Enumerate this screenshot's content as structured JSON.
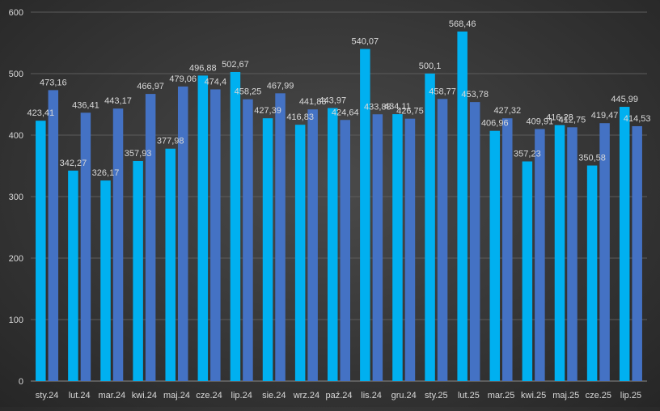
{
  "chart_data": {
    "type": "bar",
    "title": "",
    "xlabel": "",
    "ylabel": "",
    "ylim": [
      0,
      600
    ],
    "yticks": [
      "0",
      "100",
      "200",
      "300",
      "400",
      "500",
      "600"
    ],
    "grid": "horizontal",
    "legend": "none",
    "categories": [
      "sty.24",
      "lut.24",
      "mar.24",
      "kwi.24",
      "maj.24",
      "cze.24",
      "lip.24",
      "sie.24",
      "wrz.24",
      "paź.24",
      "lis.24",
      "gru.24",
      "sty.25",
      "lut.25",
      "mar.25",
      "kwi.25",
      "maj.25",
      "cze.25",
      "lip.25"
    ],
    "series": [
      {
        "color": "#00b0f0",
        "values": [
          423.41,
          342.27,
          326.17,
          357.93,
          377.98,
          496.88,
          502.67,
          427.39,
          416.83,
          443.97,
          540.07,
          434.11,
          500.1,
          568.46,
          406.96,
          357.23,
          416.28,
          350.58,
          445.99
        ],
        "labels": [
          "423,41",
          "342,27",
          "326,17",
          "357,93",
          "377,98",
          "496,88",
          "502,67",
          "427,39",
          "416,83",
          "443,97",
          "540,07",
          "434,11",
          "500,1",
          "568,46",
          "406,96",
          "357,23",
          "416,28",
          "350,58",
          "445,99"
        ]
      },
      {
        "color": "#4472c4",
        "values": [
          473.16,
          436.41,
          443.17,
          466.97,
          479.06,
          474.4,
          458.25,
          467.99,
          441.83,
          424.64,
          433.88,
          426.75,
          458.77,
          453.78,
          427.32,
          409.91,
          412.75,
          419.47,
          414.53
        ],
        "labels": [
          "473,16",
          "436,41",
          "443,17",
          "466,97",
          "479,06",
          "474,4",
          "458,25",
          "467,99",
          "441,83",
          "424,64",
          "433,88",
          "426,75",
          "458,77",
          "453,78",
          "427,32",
          "409,91",
          "412,75",
          "419,47",
          "414,53"
        ]
      }
    ]
  }
}
